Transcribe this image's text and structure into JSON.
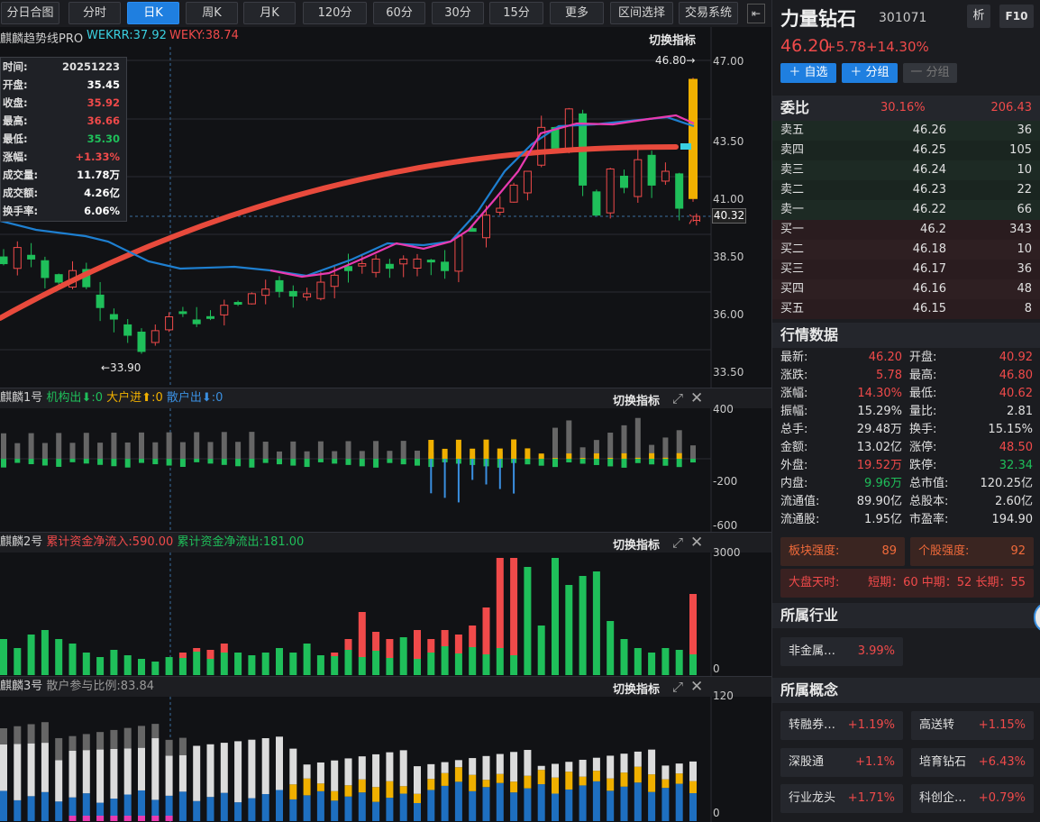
{
  "toolbar": {
    "tabs": [
      "分日合图",
      "分时",
      "日K",
      "周K",
      "月K",
      "120分",
      "60分",
      "30分",
      "15分",
      "更多",
      "区间选择",
      "交易系统"
    ],
    "active_tab": "日K"
  },
  "main_chart": {
    "indicator_name": "麒麟趋势线PRO",
    "wekrr": "WEKRR:37.92",
    "weky": "WEKY:38.74",
    "switch_label": "切换指标",
    "high_marker": "46.80→",
    "low_marker": "←33.90",
    "current_price_tag": "40.32",
    "chong_label": "冲",
    "y_ticks": [
      "47.00",
      "43.50",
      "41.00",
      "38.50",
      "36.00",
      "33.50"
    ]
  },
  "tooltip": {
    "rows": [
      {
        "k": "时间:",
        "v": "20251223"
      },
      {
        "k": "开盘:",
        "v": "35.45"
      },
      {
        "k": "收盘:",
        "v": "35.92"
      },
      {
        "k": "最高:",
        "v": "36.66"
      },
      {
        "k": "最低:",
        "v": "35.30"
      },
      {
        "k": "涨幅:",
        "v": "+1.33%"
      },
      {
        "k": "成交量:",
        "v": "11.78万"
      },
      {
        "k": "成交额:",
        "v": "4.26亿"
      },
      {
        "k": "换手率:",
        "v": "6.06%"
      }
    ],
    "colors": [
      "#e0e0e0",
      "#ffffff",
      "#f04a4a",
      "#f04a4a",
      "#1fbf5a",
      "#f04a4a",
      "#ffffff",
      "#ffffff",
      "#ffffff"
    ]
  },
  "pane1": {
    "title": "麒麟1号",
    "a_label": "机构出",
    "a_val": ":0",
    "b_label": "大户进",
    "b_val": ":0",
    "c_label": "散户出",
    "c_val": ":0",
    "switch_label": "切换指标",
    "y_ticks": [
      "400",
      "-200",
      "-600"
    ]
  },
  "pane2": {
    "title": "麒麟2号",
    "in_label": "累计资金净流入:590.00",
    "out_label": "累计资金净流出:181.00",
    "switch_label": "切换指标",
    "y_ticks": [
      "3000",
      "0"
    ]
  },
  "pane3": {
    "title": "麒麟3号",
    "ratio_label": "散户参与比例:83.84",
    "switch_label": "切换指标",
    "y_ticks": [
      "120",
      "0"
    ]
  },
  "stock": {
    "name": "力量钻石",
    "code": "301071",
    "analyze_btn": "析",
    "f10_btn": "F10",
    "price": "46.20",
    "change": "+5.78",
    "change_pct": "+14.30%",
    "add_fav": "＋ 自选",
    "add_group": "＋ 分组",
    "remove_group": "一 分组"
  },
  "order_book": {
    "title": "委比",
    "ratio": "30.16%",
    "diff": "206.43",
    "rows": [
      {
        "n": "卖五",
        "p": "46.26",
        "v": "36"
      },
      {
        "n": "卖四",
        "p": "46.25",
        "v": "105"
      },
      {
        "n": "卖三",
        "p": "46.24",
        "v": "10"
      },
      {
        "n": "卖二",
        "p": "46.23",
        "v": "22"
      },
      {
        "n": "卖一",
        "p": "46.22",
        "v": "66"
      },
      {
        "n": "买一",
        "p": "46.2",
        "v": "343"
      },
      {
        "n": "买二",
        "p": "46.18",
        "v": "10"
      },
      {
        "n": "买三",
        "p": "46.17",
        "v": "36"
      },
      {
        "n": "买四",
        "p": "46.16",
        "v": "48"
      },
      {
        "n": "买五",
        "p": "46.15",
        "v": "8"
      }
    ]
  },
  "quote": {
    "title": "行情数据",
    "rows": [
      {
        "k1": "最新:",
        "v1": "46.20",
        "c1": "#f04a4a",
        "k2": "开盘:",
        "v2": "40.92",
        "c2": "#f04a4a"
      },
      {
        "k1": "涨跌:",
        "v1": "5.78",
        "c1": "#f04a4a",
        "k2": "最高:",
        "v2": "46.80",
        "c2": "#f04a4a"
      },
      {
        "k1": "涨幅:",
        "v1": "14.30%",
        "c1": "#f04a4a",
        "k2": "最低:",
        "v2": "40.62",
        "c2": "#f04a4a"
      },
      {
        "k1": "振幅:",
        "v1": "15.29%",
        "c1": "#e0e0e0",
        "k2": "量比:",
        "v2": "2.81",
        "c2": "#e0e0e0"
      },
      {
        "k1": "总手:",
        "v1": "29.48万",
        "c1": "#e0e0e0",
        "k2": "换手:",
        "v2": "15.15%",
        "c2": "#e0e0e0"
      },
      {
        "k1": "金额:",
        "v1": "13.02亿",
        "c1": "#e0e0e0",
        "k2": "涨停:",
        "v2": "48.50",
        "c2": "#f04a4a"
      },
      {
        "k1": "外盘:",
        "v1": "19.52万",
        "c1": "#f04a4a",
        "k2": "跌停:",
        "v2": "32.34",
        "c2": "#1fbf5a"
      },
      {
        "k1": "内盘:",
        "v1": "9.96万",
        "c1": "#1fbf5a",
        "k2": "总市值:",
        "v2": "120.25亿",
        "c2": "#e0e0e0"
      },
      {
        "k1": "流通值:",
        "v1": "89.90亿",
        "c1": "#e0e0e0",
        "k2": "总股本:",
        "v2": "2.60亿",
        "c2": "#e0e0e0"
      },
      {
        "k1": "流通股:",
        "v1": "1.95亿",
        "c1": "#e0e0e0",
        "k2": "市盈率:",
        "v2": "194.90",
        "c2": "#e0e0e0"
      }
    ]
  },
  "strength": {
    "sector_label": "板块强度:",
    "sector_val": "89",
    "stock_label": "个股强度:",
    "stock_val": "92",
    "market_label": "大盘天时:",
    "market_val": "短期：60 中期：52 长期：55"
  },
  "industry": {
    "title": "所属行业",
    "name": "非金属…",
    "pct": "3.99%"
  },
  "concepts": {
    "title": "所属概念",
    "items": [
      {
        "name": "转融券…",
        "pct": "+1.19%"
      },
      {
        "name": "高送转",
        "pct": "+1.15%"
      },
      {
        "name": "深股通",
        "pct": "+1.1%"
      },
      {
        "name": "培育钻石",
        "pct": "+6.43%"
      },
      {
        "name": "行业龙头",
        "pct": "+1.71%"
      },
      {
        "name": "科创企…",
        "pct": "+0.79%"
      }
    ]
  },
  "colors": {
    "up": "#f04a4a",
    "down": "#1fbf5a",
    "accent": "#1f7fe0",
    "trend": "#e84a3c",
    "ma": "#1e7fd0",
    "pink": "#e83ab0",
    "gold": "#f0b000"
  }
}
